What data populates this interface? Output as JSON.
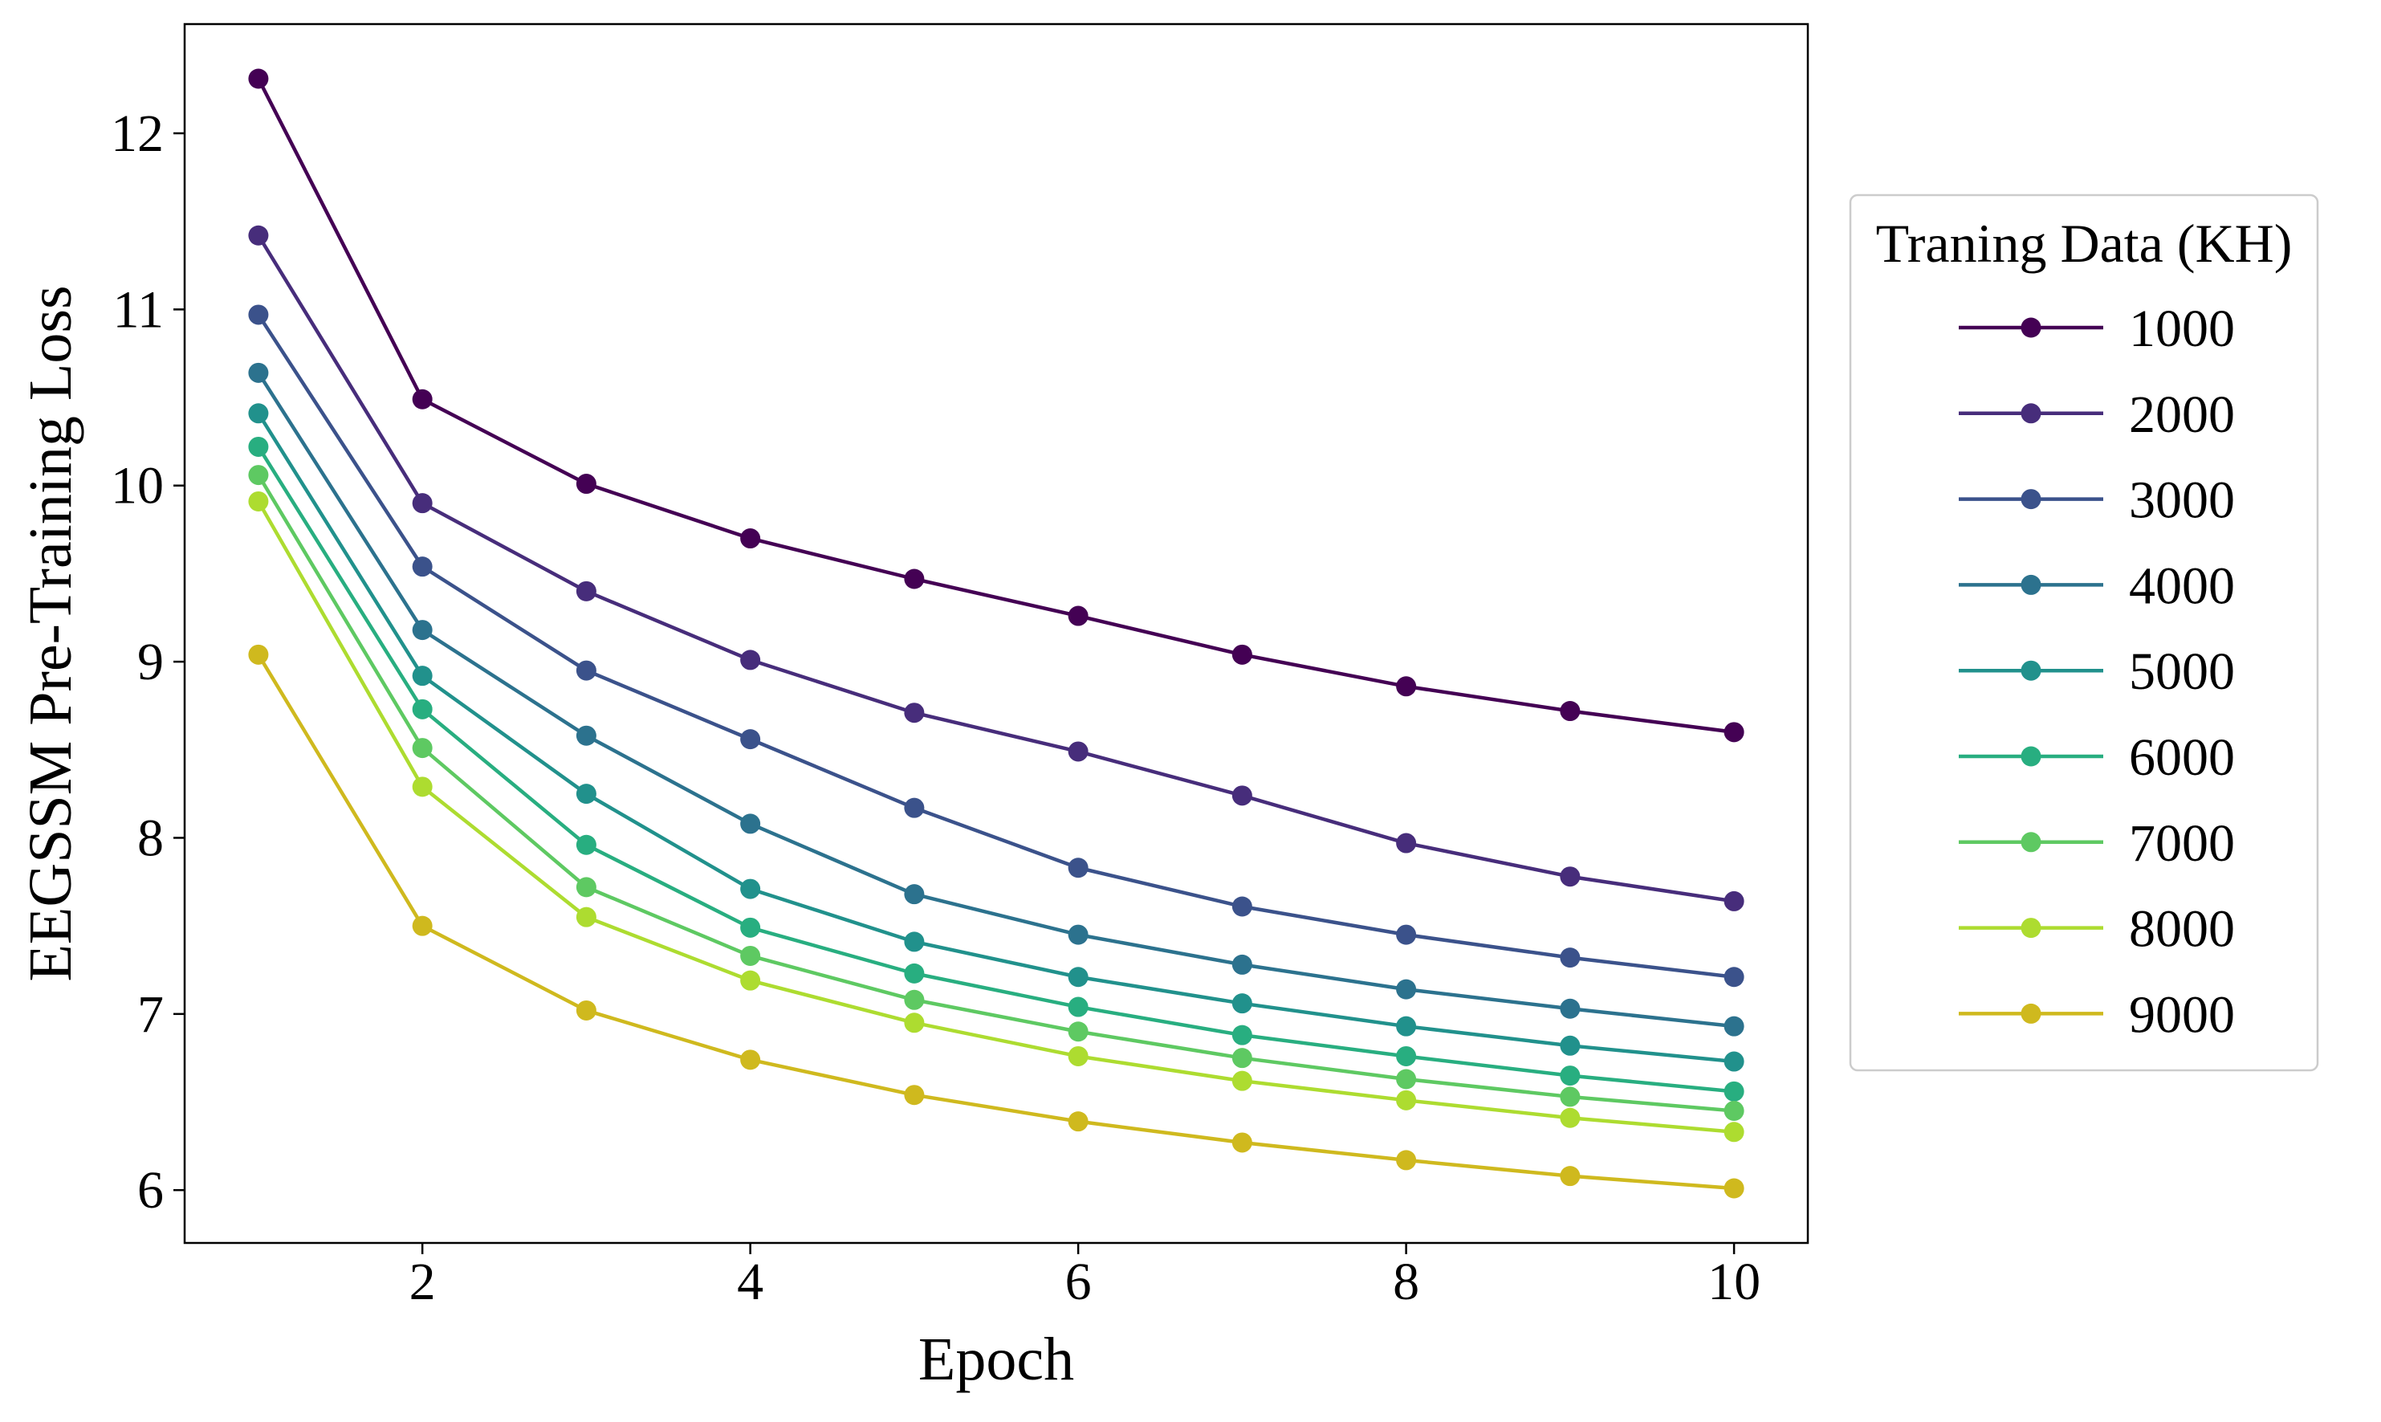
{
  "chart_data": {
    "type": "line",
    "title": "",
    "xlabel": "Epoch",
    "ylabel": "EEGSSM Pre-Training Loss",
    "x": [
      1,
      2,
      3,
      4,
      5,
      6,
      7,
      8,
      9,
      10
    ],
    "xlim": [
      0.55,
      10.45
    ],
    "ylim": [
      5.7,
      12.62
    ],
    "xticks": [
      2,
      4,
      6,
      8,
      10
    ],
    "yticks": [
      6,
      7,
      8,
      9,
      10,
      11,
      12
    ],
    "grid": false,
    "marker": "circle",
    "legend": {
      "title": "Traning Data (KH)",
      "placement": "outside-right"
    },
    "series": [
      {
        "name": "1000",
        "color": "#440154",
        "values": [
          12.31,
          10.49,
          10.01,
          9.7,
          9.47,
          9.26,
          9.04,
          8.86,
          8.72,
          8.6
        ]
      },
      {
        "name": "2000",
        "color": "#472d7b",
        "values": [
          11.42,
          9.9,
          9.4,
          9.01,
          8.71,
          8.49,
          8.24,
          7.97,
          7.78,
          7.64
        ]
      },
      {
        "name": "3000",
        "color": "#3b528b",
        "values": [
          10.97,
          9.54,
          8.95,
          8.56,
          8.17,
          7.83,
          7.61,
          7.45,
          7.32,
          7.21
        ]
      },
      {
        "name": "4000",
        "color": "#2c728e",
        "values": [
          10.64,
          9.18,
          8.58,
          8.08,
          7.68,
          7.45,
          7.28,
          7.14,
          7.03,
          6.93
        ]
      },
      {
        "name": "5000",
        "color": "#21918c",
        "values": [
          10.41,
          8.92,
          8.25,
          7.71,
          7.41,
          7.21,
          7.06,
          6.93,
          6.82,
          6.73
        ]
      },
      {
        "name": "6000",
        "color": "#28ae80",
        "values": [
          10.22,
          8.73,
          7.96,
          7.49,
          7.23,
          7.04,
          6.88,
          6.76,
          6.65,
          6.56
        ]
      },
      {
        "name": "7000",
        "color": "#5ec962",
        "values": [
          10.06,
          8.51,
          7.72,
          7.33,
          7.08,
          6.9,
          6.75,
          6.63,
          6.53,
          6.45
        ]
      },
      {
        "name": "8000",
        "color": "#addc30",
        "values": [
          9.91,
          8.29,
          7.55,
          7.19,
          6.95,
          6.76,
          6.62,
          6.51,
          6.41,
          6.33
        ]
      },
      {
        "name": "9000",
        "color": "#cfb91e",
        "values": [
          9.04,
          7.5,
          7.02,
          6.74,
          6.54,
          6.39,
          6.27,
          6.17,
          6.08,
          6.01
        ]
      }
    ]
  }
}
